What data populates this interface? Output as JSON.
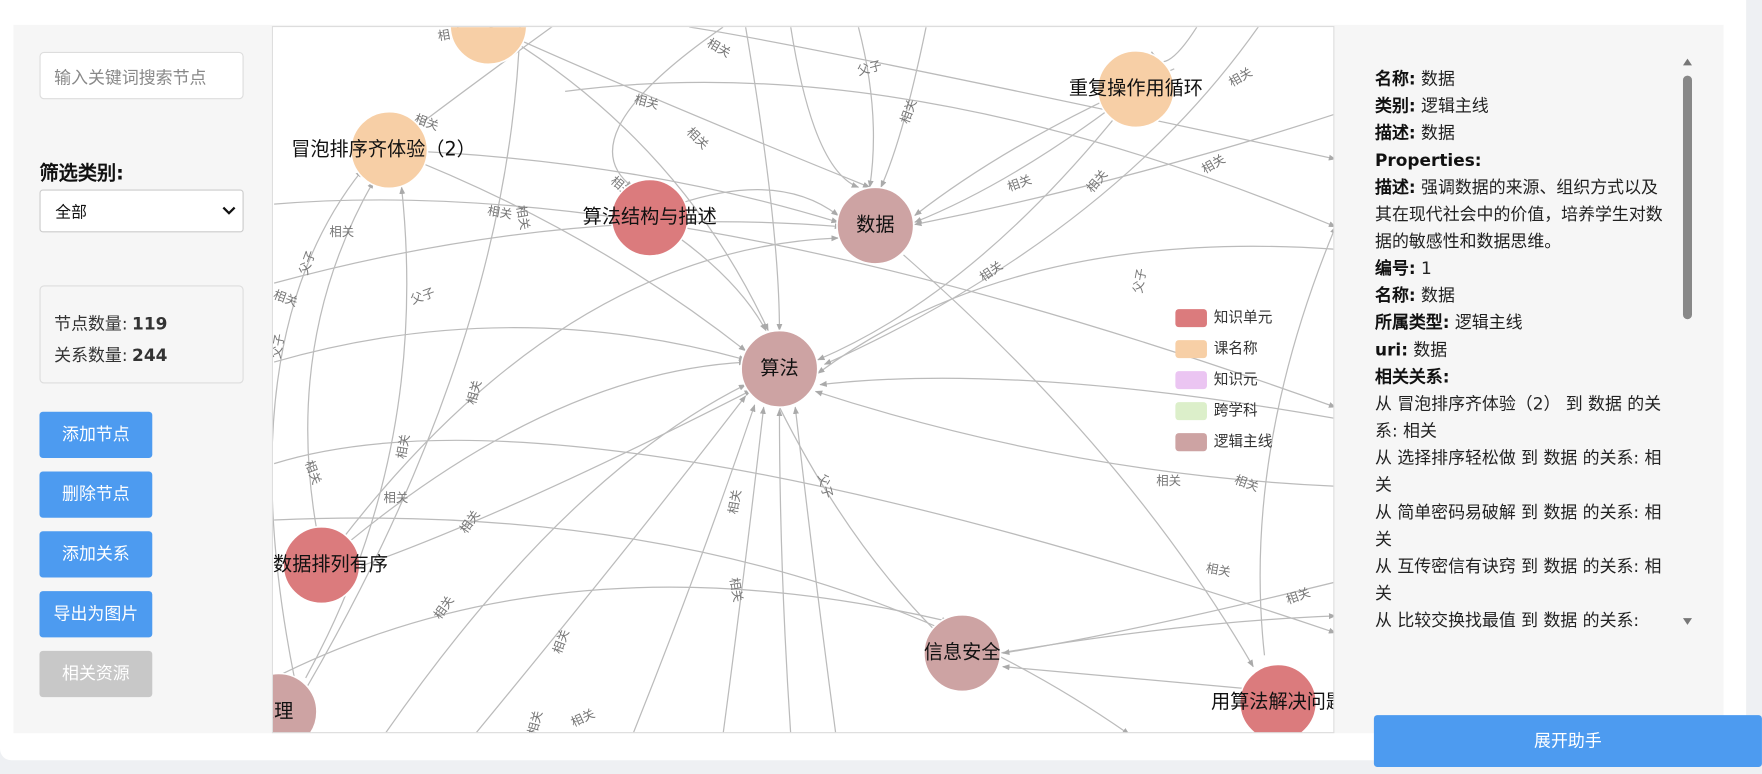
{
  "sidebar": {
    "search_placeholder": "输入关键词搜索节点",
    "filter_label": "筛选类别:",
    "filter_value": "全部",
    "stats": [
      {
        "label": "节点数量:",
        "value": "119"
      },
      {
        "label": "关系数量:",
        "value": "244"
      }
    ],
    "buttons": [
      "添加节点",
      "删除节点",
      "添加关系",
      "导出为图片",
      "相关资源"
    ]
  },
  "graph": {
    "nodes": [
      {
        "label": ""
      },
      {
        "label": "冒泡排序齐体验（2）"
      },
      {
        "label": "算法结构与描述"
      },
      {
        "label": "数据"
      },
      {
        "label": "重复操作用循环"
      },
      {
        "label": "算法"
      },
      {
        "label": "数据排列有序"
      },
      {
        "label": "信息安全"
      },
      {
        "label": "用算法解决问题"
      },
      {
        "label": "数据处理"
      }
    ],
    "edge_labels": [
      "相关",
      "相关",
      "父子",
      "相关",
      "相关",
      "相关",
      "相关",
      "相关",
      "相关",
      "相关",
      "相关",
      "相关",
      "父子",
      "相关",
      "父子",
      "相关",
      "相关",
      "相关",
      "相关",
      "父子",
      "父子",
      "相关",
      "相关",
      "相关",
      "相关",
      "相关",
      "父子",
      "相关",
      "相关",
      "相关",
      "相关",
      "相关",
      "相关",
      "相关",
      "相关",
      "相关",
      "相关"
    ],
    "legend": [
      {
        "label": "知识单元",
        "color": "#db7b7d"
      },
      {
        "label": "课名称",
        "color": "#f7cfa6"
      },
      {
        "label": "知识元",
        "color": "#ebc5f2"
      },
      {
        "label": "跨学科",
        "color": "#dcefca"
      },
      {
        "label": "逻辑主线",
        "color": "#cda3a3"
      }
    ]
  },
  "detail": {
    "lines": [
      {
        "key": "名称:",
        "value": "数据"
      },
      {
        "key": "类别:",
        "value": "逻辑主线"
      },
      {
        "key": "描述:",
        "value": "数据"
      },
      {
        "key": "Properties:",
        "value": ""
      },
      {
        "key": "描述:",
        "value": "强调数据的来源、组织方式以及其在现代社会中的价值，培养学生对数据的敏感性和数据思维。"
      },
      {
        "key": "编号:",
        "value": "1"
      },
      {
        "key": "名称:",
        "value": "数据"
      },
      {
        "key": "所属类型:",
        "value": "逻辑主线"
      },
      {
        "key": "uri:",
        "value": "数据"
      },
      {
        "key": "相关关系:",
        "value": ""
      }
    ],
    "relations": [
      "从 冒泡排序齐体验（2） 到 数据 的关系: 相关",
      "从 选择排序轻松做 到 数据 的关系: 相关",
      "从 简单密码易破解 到 数据 的关系: 相关",
      "从 互传密信有诀窍 到 数据 的关系: 相关",
      "从 比较交换找最值 到 数据 的关系:"
    ]
  },
  "assistant_button": "展开助手"
}
